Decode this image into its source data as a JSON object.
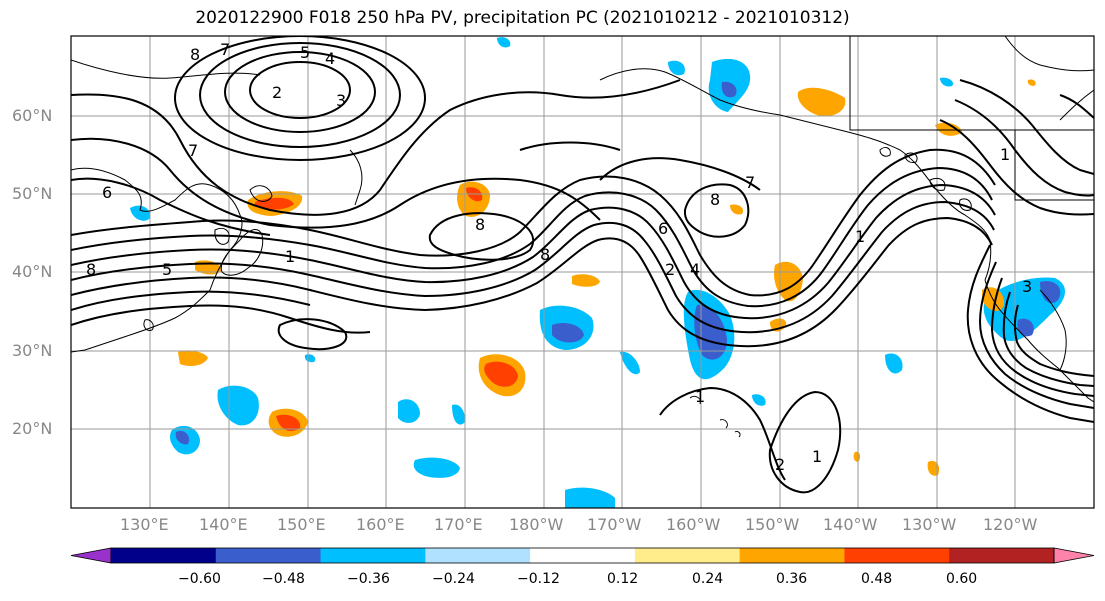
{
  "title": "2020122900 F018 250 hPa PV, precipitation PC (2021010212 - 2021010312)",
  "lat_labels": [
    "60°N",
    "50°N",
    "40°N",
    "30°N",
    "20°N"
  ],
  "lon_labels": [
    "130°E",
    "140°E",
    "150°E",
    "160°E",
    "170°E",
    "180°W",
    "170°W",
    "160°W",
    "150°W",
    "140°W",
    "130°W",
    "120°W"
  ],
  "colorbar": {
    "ticks": [
      "−0.60",
      "−0.48",
      "−0.36",
      "−0.24",
      "−0.12",
      "0.12",
      "0.24",
      "0.36",
      "0.48",
      "0.60"
    ],
    "colors": [
      "#9932cc",
      "#00008b",
      "#3a5fcd",
      "#00bfff",
      "#b0e2ff",
      "#ffffff",
      "#ffec8b",
      "#ffa500",
      "#ff4000",
      "#b22222",
      "#ff82ab"
    ]
  },
  "contour_labels": [
    "8",
    "7",
    "5",
    "4",
    "2",
    "3",
    "7",
    "6",
    "8",
    "5",
    "1",
    "8",
    "8",
    "6",
    "7",
    "8",
    "2",
    "4",
    "1",
    "1",
    "2",
    "1",
    "3",
    "1"
  ]
}
